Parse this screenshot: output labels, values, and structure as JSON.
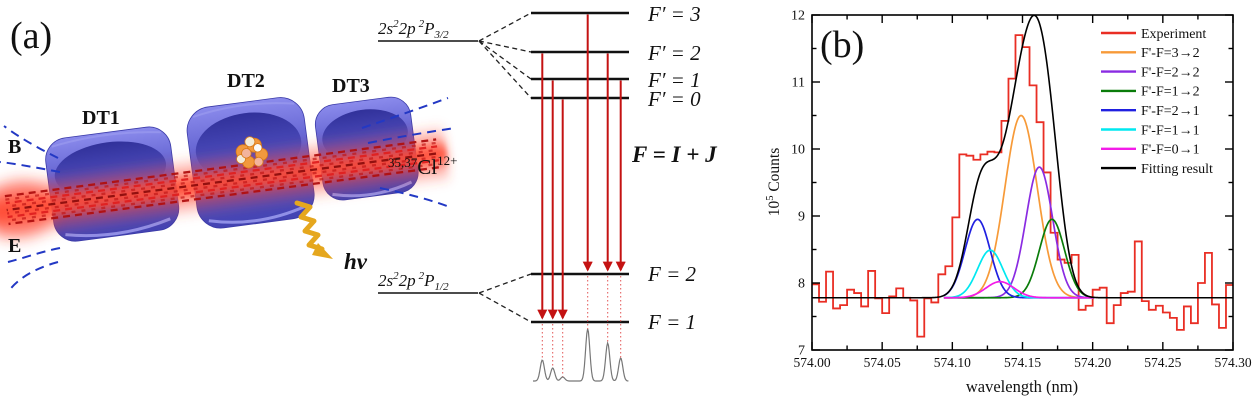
{
  "panel_a": {
    "label": "(a)",
    "drift_tubes": [
      "DT1",
      "DT2",
      "DT3"
    ],
    "b_field_label": "B",
    "e_field_label": "E",
    "ion_label": {
      "mass_numbers": "35,37",
      "element": "Cl",
      "charge": "12+"
    },
    "photon_label": "hν",
    "upper_term": {
      "p1": "2s",
      "s1": "2",
      "p2": "2p",
      "s2": "2",
      "p3": "P",
      "sub": "3/2"
    },
    "lower_term": {
      "p1": "2s",
      "s1": "2",
      "p2": "2p",
      "s2": "2",
      "p3": "P",
      "sub": "1/2"
    },
    "upper_levels": [
      "F′ = 3",
      "F′ = 2",
      "F′ = 1",
      "F′ = 0"
    ],
    "lower_levels": [
      "F = 2",
      "F = 1"
    ],
    "coupling_formula": "F = I + J",
    "transitions": [
      {
        "from": "F′=2",
        "to": "F=1"
      },
      {
        "from": "F′=1",
        "to": "F=1"
      },
      {
        "from": "F′=0",
        "to": "F=1"
      },
      {
        "from": "F′=3",
        "to": "F=2"
      },
      {
        "from": "F′=2",
        "to": "F=2"
      },
      {
        "from": "F′=1",
        "to": "F=2"
      }
    ],
    "mini_spectrum_heights": [
      21,
      13,
      4,
      52,
      38,
      23
    ],
    "colors": {
      "tube_blue": "#5a5acb",
      "beam_red": "#ff2a18",
      "arrow_red": "#c41212",
      "photon_gold": "#e5a71e",
      "b_label_blue": "#1a49cc",
      "e_label_red": "#d62222"
    }
  },
  "panel_b_label": "(b)",
  "chart_data": {
    "type": "line",
    "subtype": "step-histogram with Gaussian components and fit",
    "title": "",
    "xlabel": "wavelength (nm)",
    "ylabel": {
      "base": "10",
      "sup": "5",
      "rest": " Counts"
    },
    "xlim": [
      574.0,
      574.3
    ],
    "ylim": [
      7,
      12
    ],
    "grid": false,
    "legend_position": "top-right",
    "x_tick_labels": [
      "574.00",
      "574.05",
      "574.10",
      "574.15",
      "574.20",
      "574.25",
      "574.30"
    ],
    "y_tick_labels": [
      "7",
      "8",
      "9",
      "10",
      "11",
      "12"
    ],
    "x_minor_step": 0.025,
    "y_minor_step": 0.5,
    "baseline": 7.78,
    "bin_start": 574.0,
    "bin_width": 0.005,
    "component_draw_range": [
      574.094,
      574.201
    ],
    "series": [
      {
        "name": "Experiment",
        "kind": "histogram",
        "color": "#e92e24",
        "values": [
          7.98,
          7.72,
          8.17,
          7.62,
          7.67,
          7.9,
          7.85,
          7.65,
          8.18,
          7.77,
          7.55,
          7.8,
          7.92,
          7.78,
          7.74,
          7.2,
          7.77,
          7.71,
          8.13,
          8.25,
          8.98,
          9.92,
          9.9,
          9.84,
          9.92,
          9.96,
          9.95,
          10.42,
          11.05,
          11.7,
          11.52,
          10.95,
          10.4,
          9.65,
          8.75,
          8.35,
          8.3,
          8.42,
          7.6,
          7.66,
          7.9,
          7.93,
          7.4,
          7.67,
          7.85,
          7.87,
          8.62,
          7.73,
          7.6,
          7.66,
          7.56,
          7.48,
          7.3,
          7.65,
          7.4,
          8.0,
          8.45,
          7.68,
          7.33,
          7.97
        ]
      },
      {
        "name": "F'-F=3→2",
        "kind": "gaussian",
        "color": "#f79a38",
        "center": 574.149,
        "amplitude": 2.72,
        "sigma": 0.0115
      },
      {
        "name": "F'-F=2→2",
        "kind": "gaussian",
        "color": "#8a2be2",
        "center": 574.162,
        "amplitude": 1.95,
        "sigma": 0.0095
      },
      {
        "name": "F'-F=1→2",
        "kind": "gaussian",
        "color": "#0a7c0a",
        "center": 574.171,
        "amplitude": 1.17,
        "sigma": 0.009
      },
      {
        "name": "F'-F=2→1",
        "kind": "gaussian",
        "color": "#2020e0",
        "center": 574.118,
        "amplitude": 1.17,
        "sigma": 0.009
      },
      {
        "name": "F'-F=1→1",
        "kind": "gaussian",
        "color": "#00e8f0",
        "center": 574.127,
        "amplitude": 0.71,
        "sigma": 0.009
      },
      {
        "name": "F'-F=0→1",
        "kind": "gaussian",
        "color": "#f31be8",
        "center": 574.134,
        "amplitude": 0.24,
        "sigma": 0.01
      },
      {
        "name": "Fitting result",
        "kind": "fit-sum",
        "color": "#000000"
      }
    ]
  }
}
